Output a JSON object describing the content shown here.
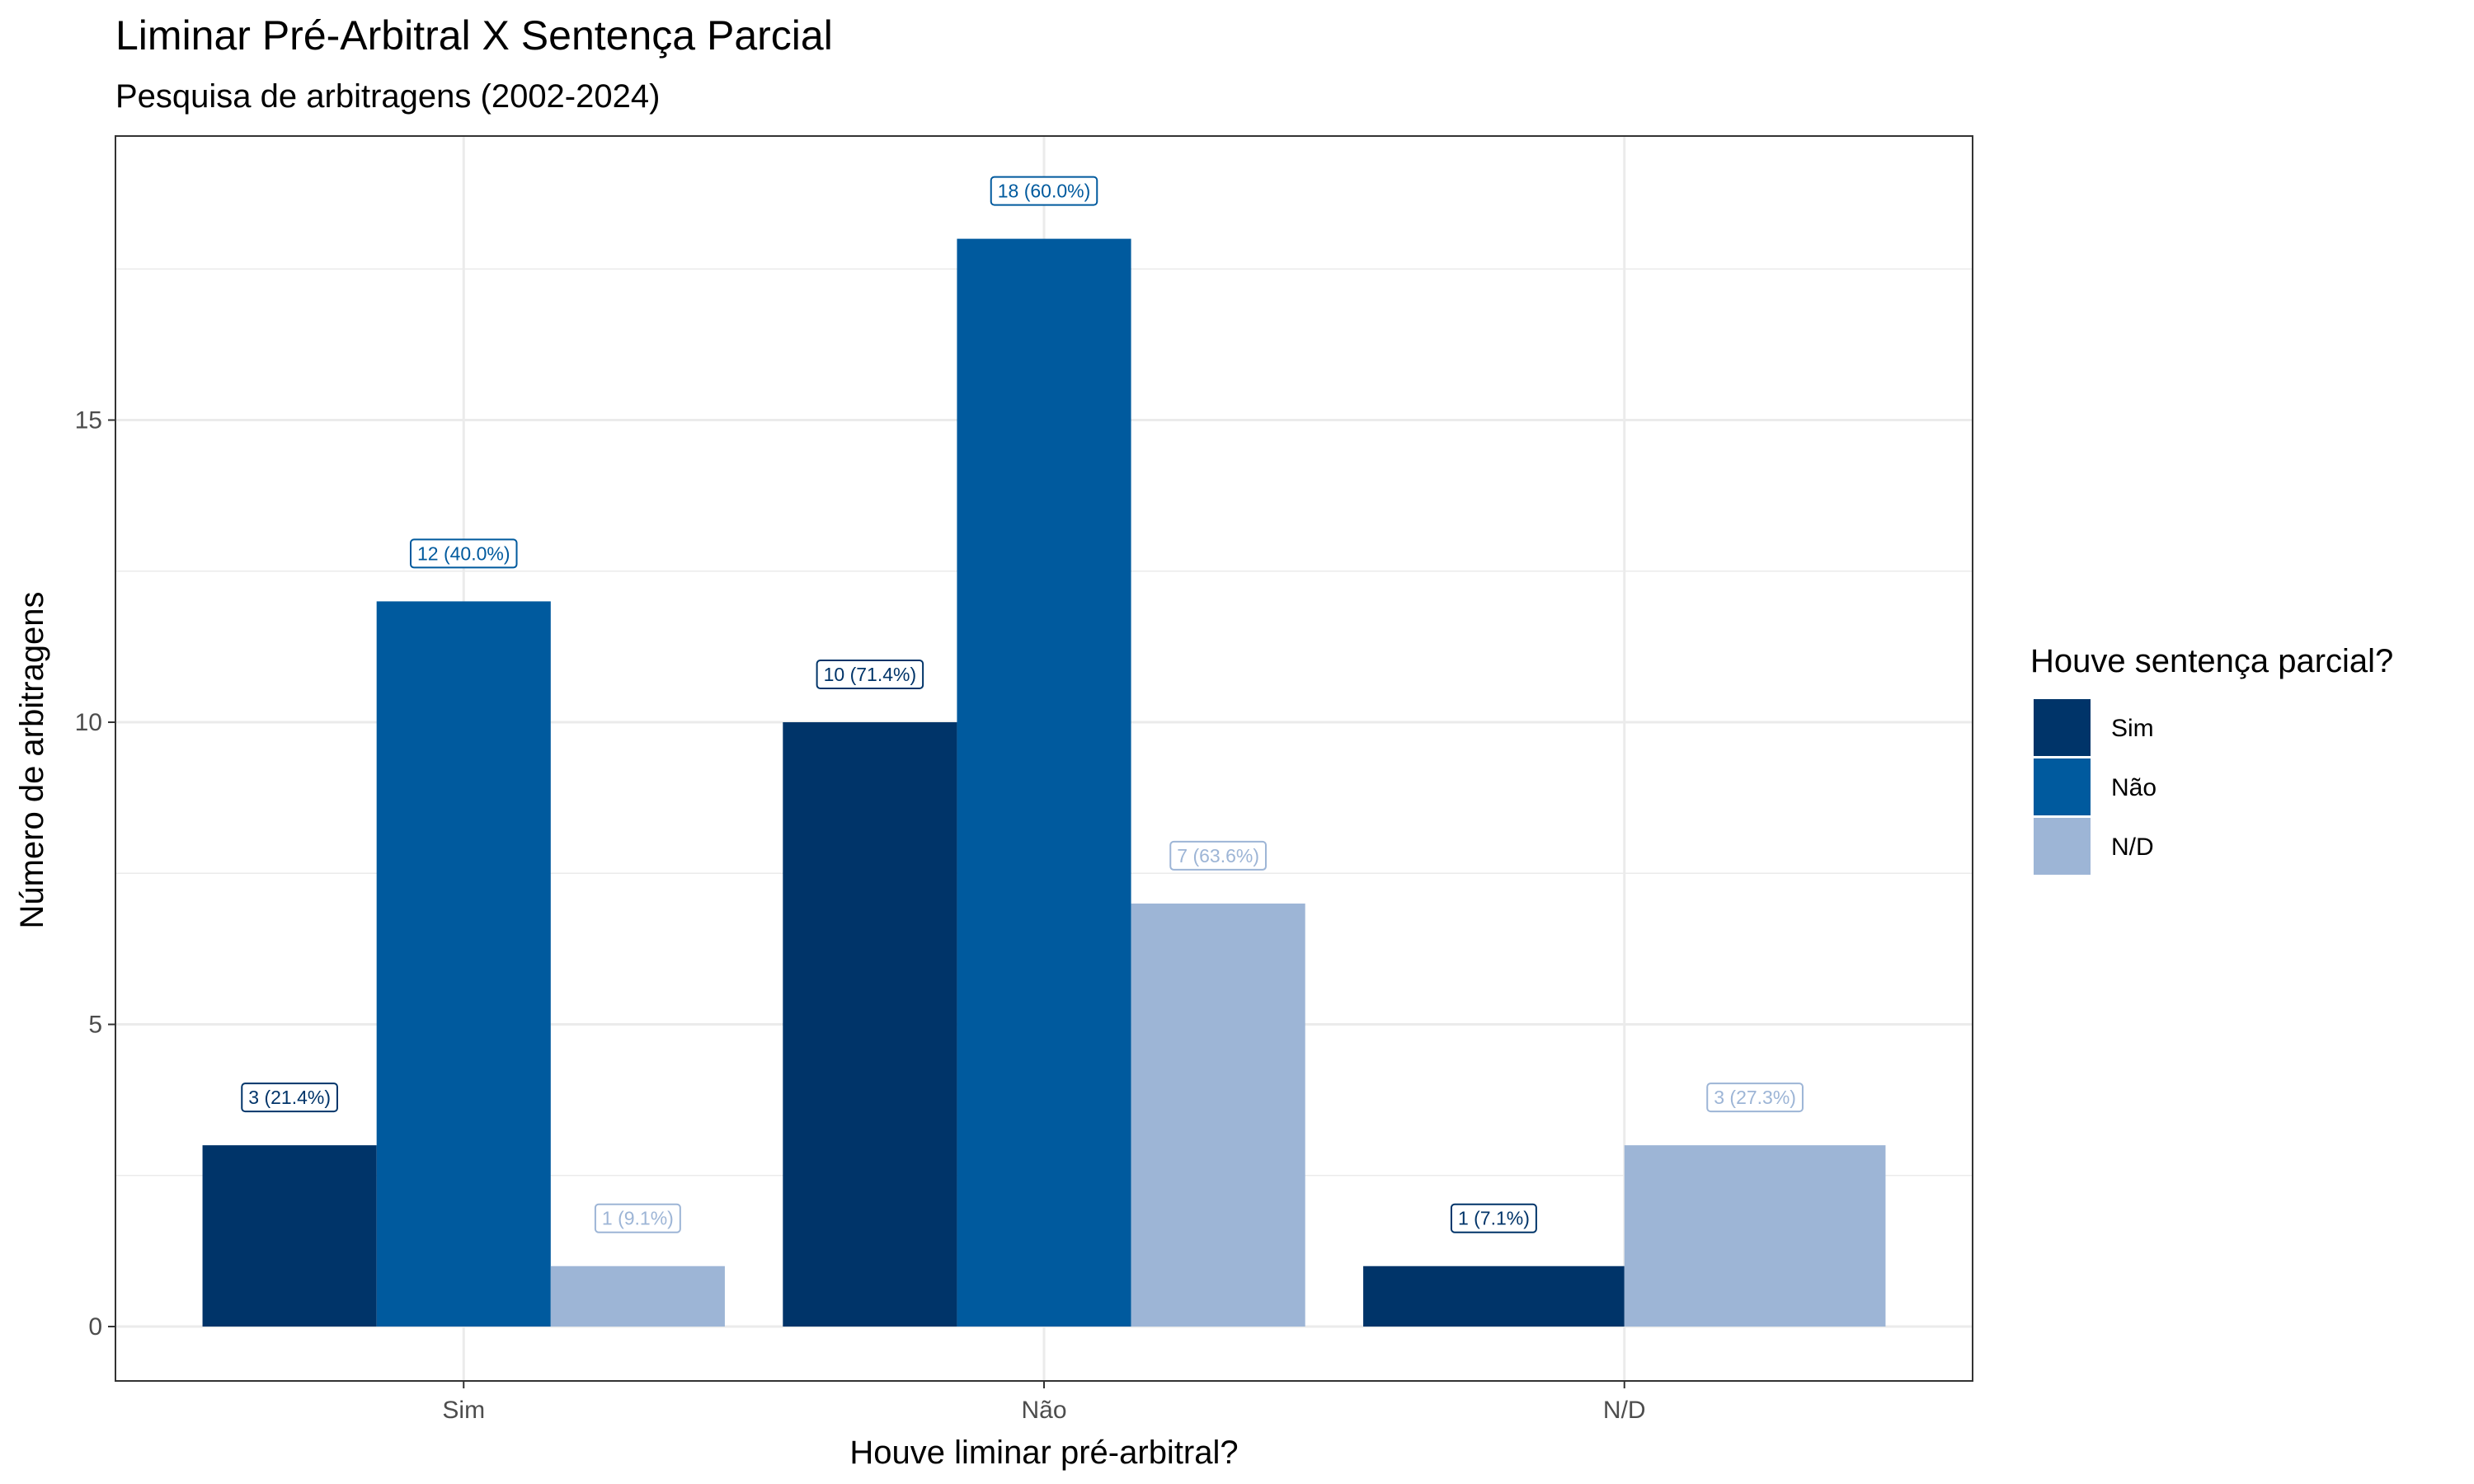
{
  "chart_data": {
    "type": "bar",
    "title": "Liminar Pré-Arbitral X Sentença Parcial",
    "subtitle": "Pesquisa de arbitragens (2002-2024)",
    "xlabel": "Houve liminar pré-arbitral?",
    "ylabel": "Número de arbitragens",
    "categories": [
      "Sim",
      "Não",
      "N/D"
    ],
    "ylim": [
      -0.9,
      19.7
    ],
    "yticks": [
      0,
      5,
      10,
      15
    ],
    "ytick_labels": [
      "0",
      "5",
      "10",
      "15"
    ],
    "grid": true,
    "legend": {
      "title": "Houve sentença parcial?",
      "position": "right"
    },
    "series": [
      {
        "name": "Sim",
        "color": "#003469",
        "values": [
          3,
          10,
          1
        ],
        "labels": [
          "3 (21.4%)",
          "10 (71.4%)",
          "1 (7.1%)"
        ]
      },
      {
        "name": "Não",
        "color": "#005a9e",
        "values": [
          12,
          18,
          null
        ],
        "labels": [
          "12 (40.0%)",
          "18 (60.0%)",
          ""
        ]
      },
      {
        "name": "N/D",
        "color": "#9db5d6",
        "values": [
          1,
          7,
          3
        ],
        "labels": [
          "1 (9.1%)",
          "7 (63.6%)",
          "3 (27.3%)"
        ]
      }
    ]
  }
}
